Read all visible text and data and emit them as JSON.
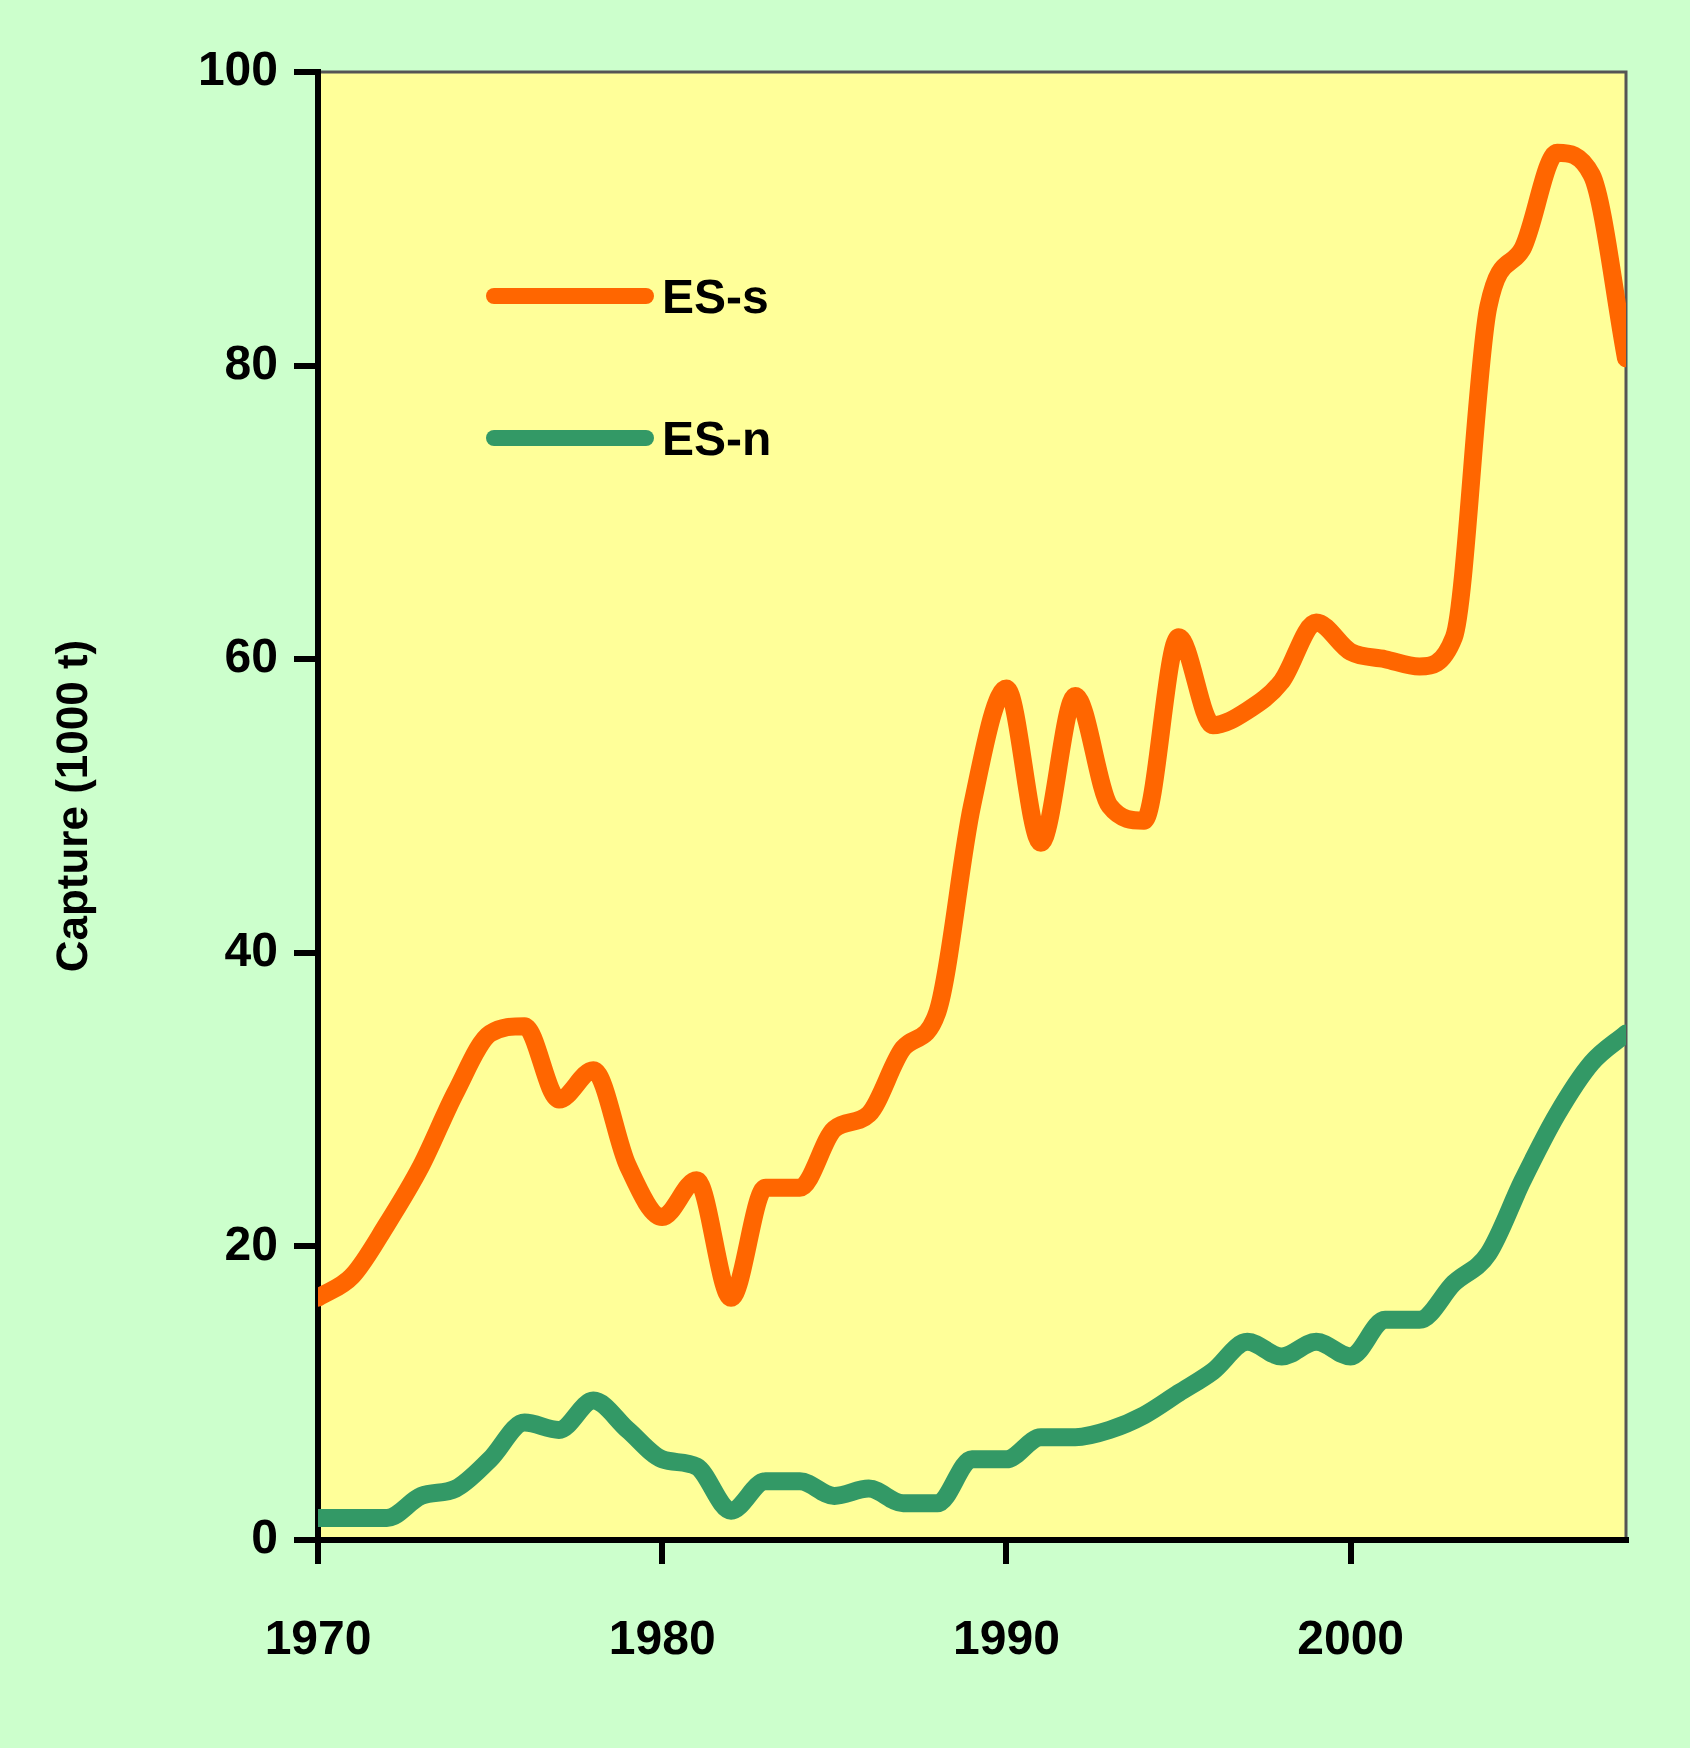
{
  "chart_data": {
    "type": "line",
    "ylabel": "Capture (1000 t)",
    "x": [
      1970,
      1971,
      1972,
      1973,
      1974,
      1975,
      1976,
      1977,
      1978,
      1979,
      1980,
      1981,
      1982,
      1983,
      1984,
      1985,
      1986,
      1987,
      1988,
      1989,
      1990,
      1991,
      1992,
      1993,
      1994,
      1995,
      1996,
      1997,
      1998,
      1999,
      2000,
      2001,
      2002,
      2003,
      2004,
      2005,
      2006,
      2007,
      2008
    ],
    "series": [
      {
        "name": "ES-s",
        "color": "#ff6600",
        "values": [
          16.5,
          18,
          21.5,
          25.5,
          30.5,
          34.5,
          35,
          30,
          32,
          25.5,
          22,
          24.5,
          16.5,
          24,
          24,
          28,
          29,
          33.5,
          36,
          50,
          58,
          47.5,
          57.5,
          50,
          49,
          61.5,
          55.5,
          56.5,
          58.5,
          62.5,
          60.5,
          60,
          59.5,
          61.5,
          84,
          88,
          94.5,
          93,
          80.5
        ]
      },
      {
        "name": "ES-n",
        "color": "#339966",
        "values": [
          1.5,
          1.5,
          1.5,
          3,
          3.5,
          5.5,
          8,
          7.5,
          9.5,
          7.5,
          5.5,
          5,
          2,
          4,
          4,
          3,
          3.5,
          2.5,
          2.5,
          5.5,
          5.5,
          7,
          7,
          7.5,
          8.5,
          10,
          11.5,
          13.5,
          12.5,
          13.5,
          12.5,
          15,
          15,
          17.5,
          19.5,
          24.5,
          29,
          32.5,
          34.5
        ]
      }
    ],
    "xlim": [
      1970,
      2008
    ],
    "xticks": [
      1970,
      1980,
      1990,
      2000
    ],
    "ylim": [
      0,
      100
    ],
    "yticks": [
      0,
      20,
      40,
      60,
      80,
      100
    ],
    "grid": false,
    "legend": "top left"
  }
}
